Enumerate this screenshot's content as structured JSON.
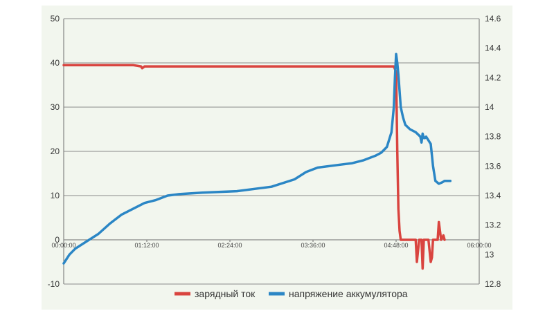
{
  "chart_data": {
    "type": "line",
    "title": "",
    "xlabel": "",
    "ylabel": "",
    "x_ticks": [
      "00:00:00",
      "01:12:00",
      "02:24:00",
      "03:36:00",
      "04:48:00",
      "06:00:00"
    ],
    "x_range_minutes": [
      0,
      360
    ],
    "y_left": {
      "range": [
        -10,
        50
      ],
      "ticks": [
        "-10",
        "0",
        "10",
        "20",
        "30",
        "40",
        "50"
      ]
    },
    "y_right": {
      "range": [
        12.8,
        14.6
      ],
      "ticks": [
        "12.8",
        "13",
        "13.2",
        "13.4",
        "13.6",
        "13.8",
        "14",
        "14.2",
        "14.4",
        "14.6"
      ]
    },
    "grid": "horizontal",
    "legend_position": "bottom-right",
    "series": [
      {
        "name": "зарядный ток",
        "axis": "left",
        "color": "#d9443f",
        "x": [
          0,
          60,
          67,
          68,
          70,
          100,
          200,
          286,
          288,
          289,
          290,
          291,
          292,
          300,
          305,
          306,
          308,
          310,
          311,
          312,
          316,
          318,
          319,
          320,
          322,
          324,
          325,
          327,
          329,
          330
        ],
        "y": [
          39.5,
          39.5,
          39.2,
          38.8,
          39.2,
          39.2,
          39.2,
          39.2,
          38,
          20,
          7,
          2,
          0,
          0,
          0,
          -5,
          0,
          0,
          -6.5,
          0,
          0,
          -5,
          -4,
          0,
          0,
          0,
          4,
          0,
          1,
          0
        ]
      },
      {
        "name": "напряжение аккумулятора",
        "axis": "right",
        "color": "#2b86c5",
        "x": [
          0,
          5,
          10,
          20,
          30,
          40,
          50,
          60,
          70,
          80,
          90,
          100,
          120,
          150,
          170,
          180,
          200,
          210,
          220,
          240,
          250,
          260,
          270,
          275,
          280,
          284,
          286,
          287,
          288,
          289,
          290,
          292,
          294,
          296,
          300,
          305,
          309,
          310,
          311,
          312,
          313,
          314,
          318,
          320,
          322,
          325,
          328,
          330,
          335
        ],
        "y": [
          12.94,
          13.0,
          13.04,
          13.09,
          13.14,
          13.21,
          13.27,
          13.31,
          13.35,
          13.37,
          13.4,
          13.41,
          13.42,
          13.43,
          13.45,
          13.46,
          13.51,
          13.56,
          13.59,
          13.61,
          13.62,
          13.64,
          13.67,
          13.69,
          13.73,
          13.83,
          14.0,
          14.2,
          14.36,
          14.3,
          14.22,
          14.0,
          13.93,
          13.88,
          13.85,
          13.83,
          13.8,
          13.76,
          13.82,
          13.79,
          13.79,
          13.8,
          13.75,
          13.6,
          13.5,
          13.48,
          13.49,
          13.5,
          13.5
        ]
      }
    ]
  }
}
